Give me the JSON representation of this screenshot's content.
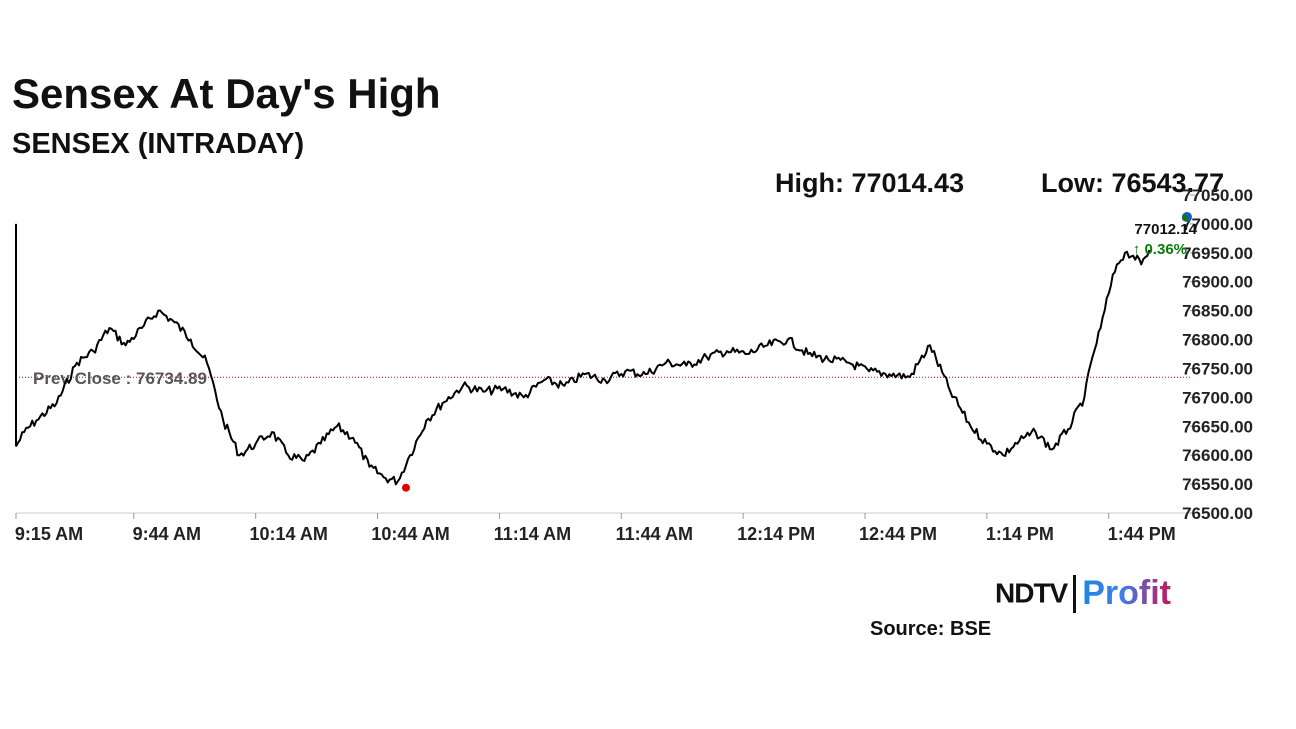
{
  "header": {
    "title": "Sensex At Day's High",
    "subtitle": "SENSEX (INTRADAY)"
  },
  "stats": {
    "high_label": "High: 77014.43",
    "low_label": "Low: 76543.77"
  },
  "chart_data": {
    "type": "line",
    "series": [
      {
        "x": [
          "9:15",
          "9:17",
          "9:20",
          "9:25",
          "9:30",
          "9:34",
          "9:38",
          "9:42",
          "9:46",
          "9:50",
          "9:54",
          "9:58",
          "10:02",
          "10:06",
          "10:10",
          "10:14",
          "10:18",
          "10:22",
          "10:26",
          "10:30",
          "10:34",
          "10:38",
          "10:42",
          "10:46",
          "10:49",
          "10:52",
          "10:56",
          "11:00",
          "11:05",
          "11:10",
          "11:15",
          "11:20",
          "11:25",
          "11:30",
          "11:35",
          "11:40",
          "11:45",
          "11:50",
          "11:55",
          "12:00",
          "12:05",
          "12:10",
          "12:15",
          "12:20",
          "12:25",
          "12:30",
          "12:35",
          "12:40",
          "12:45",
          "12:50",
          "12:55",
          "13:00",
          "13:05",
          "13:10",
          "13:14",
          "13:18",
          "13:22",
          "13:26",
          "13:30",
          "13:34",
          "13:38",
          "13:40",
          "13:42",
          "13:44",
          "13:46",
          "13:48",
          "13:50",
          "13:52",
          "13:54"
        ],
        "y": [
          76615,
          76640,
          76660,
          76690,
          76760,
          76780,
          76820,
          76790,
          76820,
          76850,
          76830,
          76800,
          76760,
          76660,
          76600,
          76620,
          76640,
          76600,
          76590,
          76620,
          76650,
          76630,
          76580,
          76560,
          76555,
          76600,
          76660,
          76690,
          76720,
          76710,
          76715,
          76700,
          76730,
          76720,
          76740,
          76730,
          76745,
          76740,
          76760,
          76755,
          76770,
          76780,
          76775,
          76790,
          76800,
          76775,
          76765,
          76760,
          76745,
          76740,
          76735,
          76790,
          76710,
          76650,
          76620,
          76600,
          76625,
          76640,
          76610,
          76645,
          76700,
          76770,
          76820,
          76880,
          76930,
          76950,
          76945,
          76930,
          76955
        ]
      }
    ],
    "y_ticks": [
      "76500.00",
      "76550.00",
      "76600.00",
      "76650.00",
      "76700.00",
      "76750.00",
      "76800.00",
      "76850.00",
      "76900.00",
      "76950.00",
      "77000.00",
      "77050.00"
    ],
    "ylim": [
      76500,
      77050
    ],
    "x_ticks": [
      {
        "label": "9:15 AM",
        "t": "9:15"
      },
      {
        "label": "9:44 AM",
        "t": "9:44"
      },
      {
        "label": "10:14 AM",
        "t": "10:14"
      },
      {
        "label": "10:44 AM",
        "t": "10:44"
      },
      {
        "label": "11:14 AM",
        "t": "11:14"
      },
      {
        "label": "11:44 AM",
        "t": "11:44"
      },
      {
        "label": "12:14 PM",
        "t": "12:14"
      },
      {
        "label": "12:44 PM",
        "t": "12:44"
      },
      {
        "label": "1:14 PM",
        "t": "13:14"
      },
      {
        "label": "1:44 PM",
        "t": "13:44"
      }
    ],
    "prev_close": 76734.89,
    "prev_close_label": "Prev Close : 76734.89",
    "current_value_label": "77012.14",
    "change_label": "↑ 0.36%",
    "low_point": {
      "t": "10:51",
      "value": 76543.77
    },
    "colors": {
      "line": "#000000",
      "prev_close": "#cc0000",
      "low_marker": "#e00000",
      "change": "#0a7a0a",
      "grid_axis": "#cccccc"
    }
  },
  "logo": {
    "brand": "NDTV",
    "product": "Profit"
  },
  "footer": {
    "source": "Source: BSE"
  }
}
